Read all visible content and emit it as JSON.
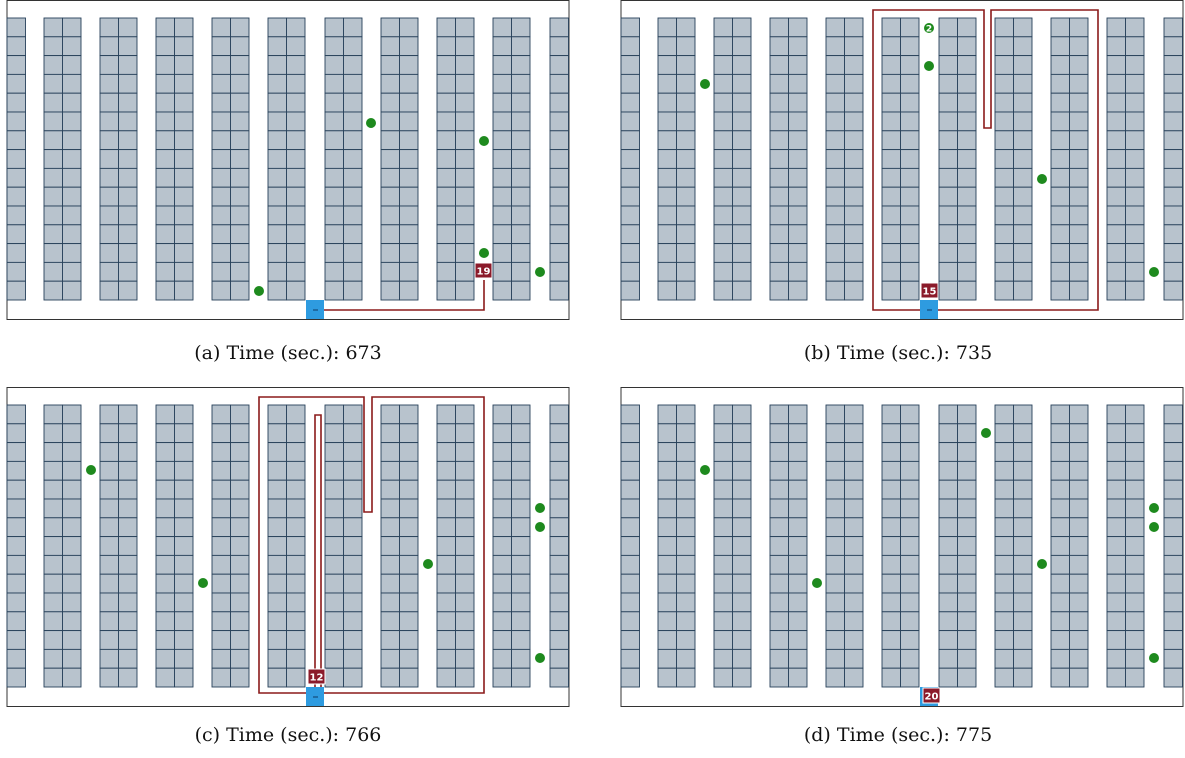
{
  "colors": {
    "shelf_fill": "#b8c3cd",
    "shelf_stroke": "#27415a",
    "route": "#8b1a1a",
    "picker": "#8b1a2a",
    "depot": "#2e9be0",
    "order": "#1e8a1e",
    "border": "#333333"
  },
  "icons": {
    "order": "green-dot-icon",
    "depot": "depot-square-icon",
    "picker": "picker-badge-icon"
  },
  "panels": [
    {
      "id": "a",
      "caption_label": "(a)",
      "caption_text": "Time (sec.):",
      "time": "673",
      "picker_label": "19",
      "dot_labels": []
    },
    {
      "id": "b",
      "caption_label": "(b)",
      "caption_text": "Time (sec.):",
      "time": "735",
      "picker_label": "15",
      "dot_labels": [
        "2"
      ]
    },
    {
      "id": "c",
      "caption_label": "(c)",
      "caption_text": "Time (sec.):",
      "time": "766",
      "picker_label": "12",
      "dot_labels": []
    },
    {
      "id": "d",
      "caption_label": "(d)",
      "caption_text": "Time (sec.):",
      "time": "775",
      "picker_label": "20",
      "dot_labels": []
    }
  ]
}
